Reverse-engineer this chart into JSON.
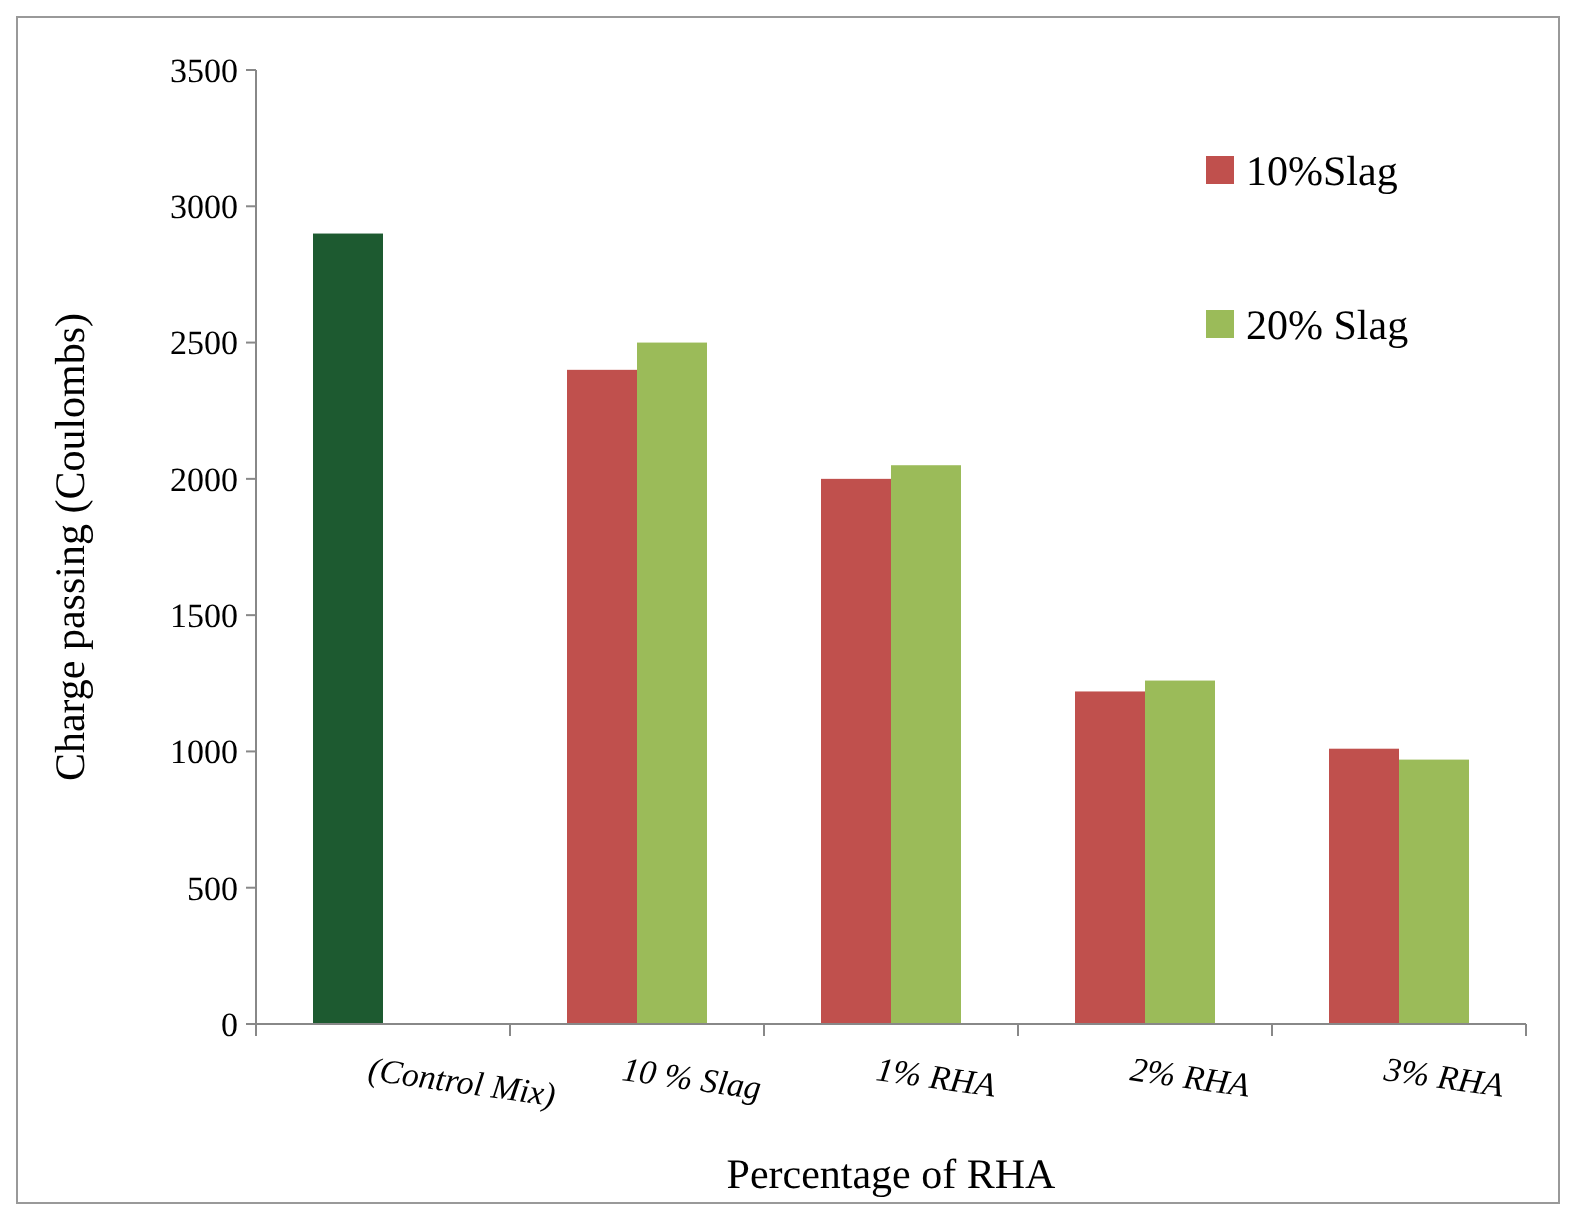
{
  "chart_data": {
    "type": "bar",
    "xlabel": "Percentage of RHA",
    "ylabel": "Charge passing  (Coulombs)",
    "categories": [
      "(Control Mix)",
      "10 % Slag",
      "1% RHA",
      "2% RHA",
      "3% RHA"
    ],
    "series": [
      {
        "name": "10%Slag",
        "color": "#c0504d",
        "colors": [
          "#1d5a30",
          "#c0504d",
          "#c0504d",
          "#c0504d",
          "#c0504d"
        ],
        "values": [
          2900,
          2400,
          2000,
          1220,
          1010
        ]
      },
      {
        "name": "20% Slag",
        "color": "#9bbb59",
        "values": [
          null,
          2500,
          2050,
          1260,
          970
        ]
      }
    ],
    "ylim": [
      0,
      3500
    ],
    "yticks": [
      0,
      500,
      1000,
      1500,
      2000,
      2500,
      3000,
      3500
    ],
    "grid": false,
    "legend": "top right"
  }
}
